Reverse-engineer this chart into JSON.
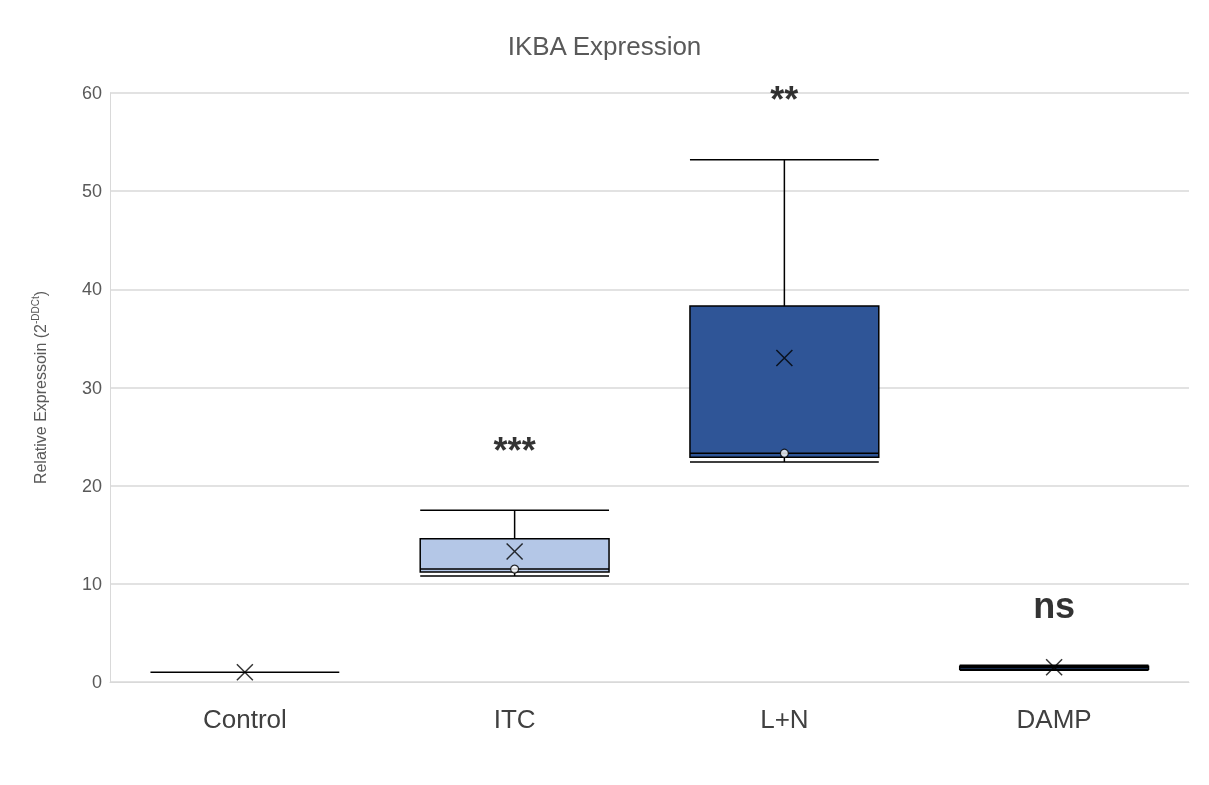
{
  "chart_data": {
    "type": "box",
    "title": "IKBA Expression",
    "ylabel": "Relative Expressoin (2$^{-DDCt}$)",
    "categories": [
      "Control",
      "ITC",
      "L+N",
      "DAMP"
    ],
    "colors": [
      "#000000",
      "#b4c7e7",
      "#2f5597",
      "#2f5597"
    ],
    "boxes": [
      {
        "low": 1.0,
        "q1": 1.0,
        "median": 1.0,
        "q3": 1.0,
        "high": 1.0,
        "mean": 1.0
      },
      {
        "low": 10.8,
        "q1": 11.2,
        "median": 11.5,
        "q3": 14.6,
        "high": 17.5,
        "mean": 13.3,
        "outliers": [
          11.5
        ]
      },
      {
        "low": 22.4,
        "q1": 22.9,
        "median": 23.3,
        "q3": 38.3,
        "high": 53.2,
        "mean": 33.0,
        "outliers": [
          23.3
        ]
      },
      {
        "low": 1.2,
        "q1": 1.3,
        "median": 1.5,
        "q3": 1.6,
        "high": 1.7,
        "mean": 1.5
      }
    ],
    "ylim": [
      0,
      60
    ],
    "yticks": [
      0,
      10,
      20,
      30,
      40,
      50,
      60
    ],
    "grid": "y",
    "annotations": [
      {
        "text": "***",
        "x": "ITC",
        "y": 17.5
      },
      {
        "text": "**",
        "x": "L+N",
        "y": 53.2
      },
      {
        "text": "ns",
        "x": "DAMP",
        "y": 1.7
      }
    ]
  }
}
